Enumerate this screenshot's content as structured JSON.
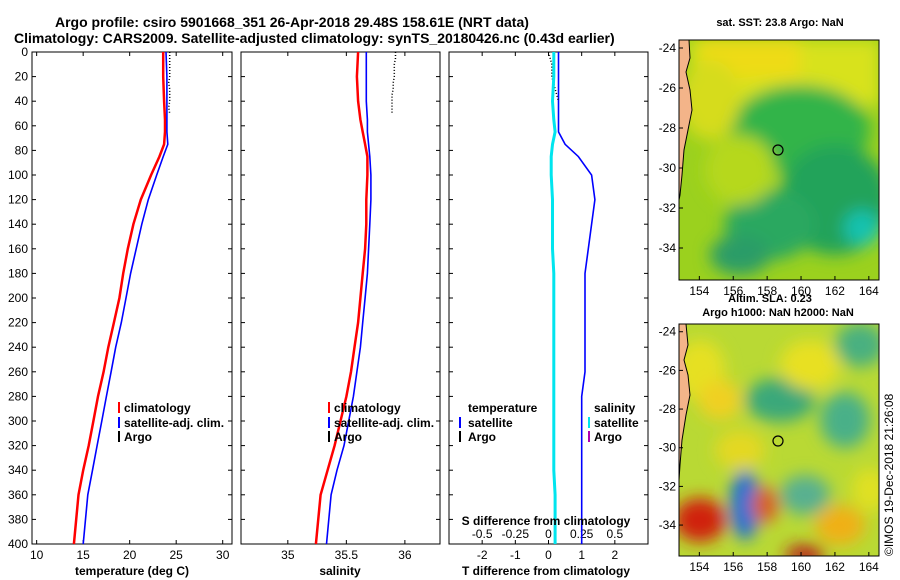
{
  "title_line1": "Argo profile: csiro 5901668_351 26-Apr-2018 29.48S 158.61E (NRT data)",
  "title_line2": "Climatology: CARS2009. Satellite-adjusted climatology: synTS_20180426.nc (0.43d earlier)",
  "footer_credit": "©IMOS 19-Dec-2018 21:26:08",
  "colors": {
    "climatology": "#ff0000",
    "satellite": "#0000ff",
    "argo": "#000000",
    "salinity_diff": "#00e5ee",
    "coast": "#000000"
  },
  "chart_data": [
    {
      "type": "line",
      "id": "temperature",
      "xlabel": "temperature (deg C)",
      "ylabel": "",
      "xlim": [
        9.5,
        31
      ],
      "ylim": [
        400,
        0
      ],
      "xticks": [
        "10",
        "15",
        "20",
        "25",
        "30"
      ],
      "yticks": [
        "0",
        "20",
        "40",
        "60",
        "80",
        "100",
        "120",
        "140",
        "160",
        "180",
        "200",
        "220",
        "240",
        "260",
        "280",
        "300",
        "320",
        "340",
        "360",
        "380",
        "400"
      ],
      "legend": [
        "climatology",
        "satellite-adj. clim.",
        "Argo"
      ],
      "series": [
        {
          "name": "climatology",
          "x": [
            23.6,
            23.6,
            23.7,
            23.8,
            23.8,
            23.7,
            23.2,
            22.3,
            21.2,
            20.4,
            19.8,
            19.3,
            18.9,
            18.3,
            17.7,
            17.2,
            16.6,
            16.1,
            15.6,
            15.0,
            14.5,
            14.0
          ],
          "depth": [
            0,
            20,
            40,
            55,
            65,
            75,
            85,
            100,
            120,
            140,
            160,
            180,
            200,
            220,
            240,
            260,
            280,
            300,
            320,
            340,
            360,
            400
          ]
        },
        {
          "name": "satellite-adj. clim.",
          "x": [
            23.9,
            24.0,
            24.0,
            24.0,
            24.0,
            24.1,
            23.6,
            22.9,
            22.0,
            21.3,
            20.7,
            20.1,
            19.6,
            19.1,
            18.5,
            18.0,
            17.5,
            17.0,
            16.5,
            16.0,
            15.5,
            15.0
          ],
          "depth": [
            0,
            20,
            40,
            55,
            65,
            75,
            85,
            100,
            120,
            140,
            160,
            180,
            200,
            220,
            240,
            260,
            280,
            300,
            320,
            340,
            360,
            400
          ]
        },
        {
          "name": "Argo",
          "x": [
            24.3,
            24.3,
            24.3,
            24.3,
            24.3,
            24.2,
            24.3,
            24.3,
            24.3,
            24.2,
            24.3
          ],
          "depth": [
            0,
            5,
            10,
            15,
            20,
            25,
            30,
            35,
            40,
            45,
            50
          ]
        }
      ]
    },
    {
      "type": "line",
      "id": "salinity",
      "xlabel": "salinity",
      "ylabel": "",
      "xlim": [
        34.6,
        36.3
      ],
      "ylim": [
        400,
        0
      ],
      "xticks": [
        "35",
        "35.5",
        "36"
      ],
      "legend": [
        "climatology",
        "satellite-adj. clim.",
        "Argo"
      ],
      "series": [
        {
          "name": "climatology",
          "x": [
            35.6,
            35.59,
            35.6,
            35.62,
            35.64,
            35.66,
            35.68,
            35.68,
            35.67,
            35.67,
            35.66,
            35.64,
            35.62,
            35.6,
            35.57,
            35.54,
            35.5,
            35.45,
            35.4,
            35.34,
            35.28,
            35.24
          ],
          "depth": [
            0,
            20,
            40,
            55,
            65,
            75,
            85,
            100,
            120,
            140,
            160,
            180,
            200,
            220,
            240,
            260,
            280,
            300,
            320,
            340,
            360,
            400
          ]
        },
        {
          "name": "satellite-adj. clim.",
          "x": [
            35.67,
            35.67,
            35.67,
            35.68,
            35.68,
            35.69,
            35.7,
            35.71,
            35.71,
            35.7,
            35.69,
            35.68,
            35.66,
            35.64,
            35.62,
            35.59,
            35.56,
            35.52,
            35.48,
            35.42,
            35.37,
            35.33
          ],
          "depth": [
            0,
            20,
            40,
            55,
            65,
            75,
            85,
            100,
            120,
            140,
            160,
            180,
            200,
            220,
            240,
            260,
            280,
            300,
            320,
            340,
            360,
            400
          ]
        },
        {
          "name": "Argo",
          "x": [
            35.92,
            35.92,
            35.91,
            35.91,
            35.91,
            35.9,
            35.9,
            35.89,
            35.89,
            35.89,
            35.89
          ],
          "depth": [
            0,
            5,
            10,
            15,
            20,
            25,
            30,
            35,
            40,
            45,
            50
          ]
        }
      ]
    },
    {
      "type": "line",
      "id": "difference",
      "xlabel": "T difference from climatology",
      "xlabel2": "S difference from climatology",
      "ylabel": "",
      "xlim": [
        -3,
        3
      ],
      "ylim": [
        400,
        0
      ],
      "xticks": [
        "-2",
        "-1",
        "0",
        "1",
        "2"
      ],
      "xticks2": [
        "-0.5",
        "-0.25",
        "0",
        "0.25",
        "0.5"
      ],
      "legend_left_title": "temperature",
      "legend_right_title": "salinity",
      "legend_left": [
        "satellite",
        "Argo"
      ],
      "legend_right": [
        "satellite",
        "Argo"
      ],
      "series": [
        {
          "name": "temperature satellite",
          "x": [
            0.3,
            0.3,
            0.3,
            0.3,
            0.3,
            0.5,
            0.9,
            1.3,
            1.4,
            1.3,
            1.2,
            1.1,
            1.1,
            1.1,
            1.1,
            1.1,
            1.0,
            1.0,
            1.0,
            1.0,
            1.0,
            1.0
          ],
          "depth": [
            0,
            20,
            40,
            55,
            65,
            75,
            85,
            100,
            120,
            140,
            160,
            180,
            200,
            220,
            240,
            260,
            280,
            300,
            320,
            340,
            360,
            400
          ]
        },
        {
          "name": "temperature Argo",
          "x": [
            0.0,
            0.1,
            0.1,
            0.2,
            0.3
          ],
          "depth": [
            0,
            10,
            20,
            30,
            40
          ]
        },
        {
          "name": "salinity satellite",
          "x": [
            0.04,
            0.04,
            0.03,
            0.04,
            0.05,
            0.03,
            0.02,
            0.02,
            0.03,
            0.03,
            0.03,
            0.04,
            0.04,
            0.04,
            0.04,
            0.04,
            0.04,
            0.04,
            0.04,
            0.04,
            0.05,
            0.05
          ],
          "depth": [
            0,
            20,
            40,
            55,
            65,
            75,
            85,
            100,
            120,
            140,
            160,
            180,
            200,
            220,
            240,
            260,
            280,
            300,
            320,
            340,
            360,
            400
          ]
        }
      ]
    },
    {
      "type": "heatmap",
      "id": "sst-map",
      "title": "sat. SST: 23.8 Argo: NaN",
      "xticks": [
        "154",
        "156",
        "158",
        "160",
        "162",
        "164"
      ],
      "yticks": [
        "-24",
        "-26",
        "-28",
        "-30",
        "-32",
        "-34"
      ],
      "xlim": [
        152.8,
        164.6
      ],
      "ylim": [
        -35.6,
        -23.6
      ],
      "argo_position": {
        "lon": 158.61,
        "lat": -29.48
      }
    },
    {
      "type": "heatmap",
      "id": "sla-map",
      "title": "Altim. SLA: 0.23",
      "subtitle": "Argo h1000: NaN h2000: NaN",
      "xticks": [
        "154",
        "156",
        "158",
        "160",
        "162",
        "164"
      ],
      "yticks": [
        "-24",
        "-26",
        "-28",
        "-30",
        "-32",
        "-34"
      ],
      "xlim": [
        152.8,
        164.6
      ],
      "ylim": [
        -35.6,
        -23.6
      ],
      "argo_position": {
        "lon": 158.61,
        "lat": -29.48
      }
    }
  ]
}
